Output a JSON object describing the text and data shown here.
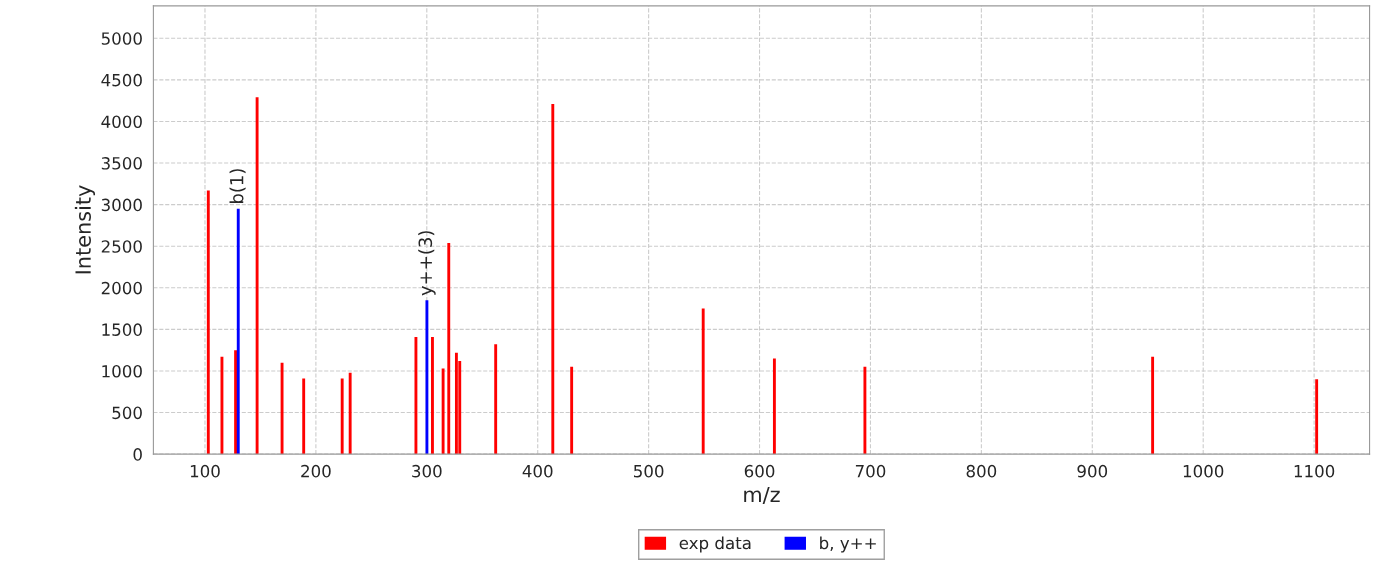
{
  "chart_data": {
    "type": "bar",
    "xlabel": "m/z",
    "ylabel": "Intensity",
    "series": [
      {
        "name": "exp data",
        "color": "#ff0000",
        "x": [
          103,
          115.3,
          127.6,
          147,
          169.5,
          189,
          223.7,
          230.9,
          290.2,
          305.1,
          314.7,
          319.8,
          326.7,
          329.7,
          362.1,
          413.6,
          430.6,
          549.2,
          613.4,
          695,
          954.4,
          1102.3
        ],
        "values": [
          3170,
          1170,
          1250,
          4290,
          1100,
          910,
          910,
          980,
          1410,
          1410,
          1030,
          2540,
          1220,
          1120,
          1320,
          4210,
          1050,
          1750,
          1150,
          1050,
          1170,
          900
        ]
      },
      {
        "name": "b, y++",
        "color": "#0000ff",
        "x": [
          130,
          300.1
        ],
        "values": [
          2950,
          1850
        ]
      }
    ],
    "annotations": [
      {
        "text": "b(1)",
        "x": 130,
        "y": 2950
      },
      {
        "text": "y++(3)",
        "x": 300.1,
        "y": 1850
      }
    ],
    "xlim": [
      53.5,
      1150
    ],
    "xticks": [
      100,
      200,
      300,
      400,
      500,
      600,
      700,
      800,
      900,
      1000,
      1100
    ],
    "ylim": [
      0,
      5390
    ],
    "yticks": [
      0,
      500,
      1000,
      1500,
      2000,
      2500,
      3000,
      3500,
      4000,
      4500,
      5000
    ],
    "grid": true,
    "legend": "bottom"
  }
}
